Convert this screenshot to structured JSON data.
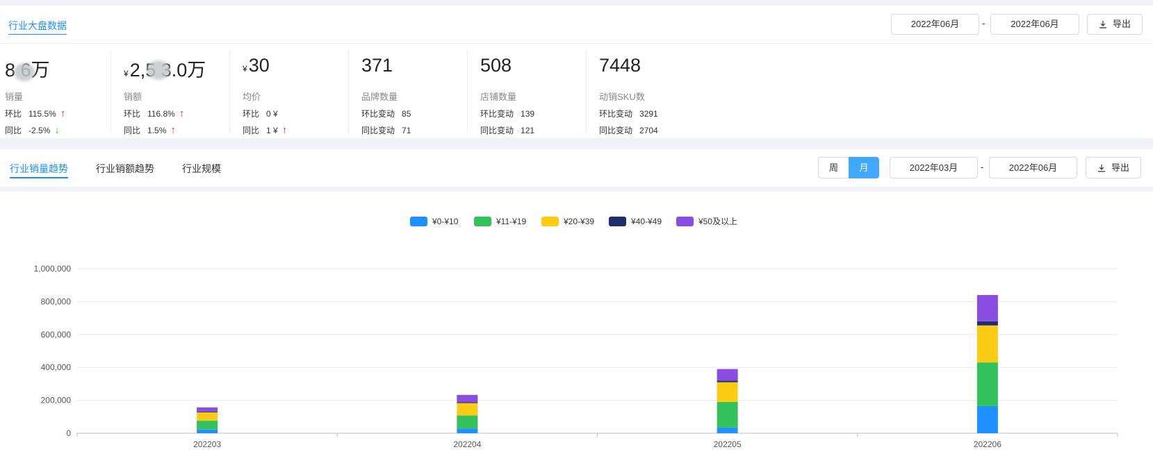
{
  "header": {
    "title": "行业大盘数据",
    "date_start": "2022年06月",
    "date_sep": "-",
    "date_end": "2022年06月",
    "export_label": "导出"
  },
  "stats": [
    {
      "value": "8  6万",
      "currency": "",
      "label": "销量",
      "line1_key": "环比",
      "line1_val": "115.5%",
      "line1_dir": "up",
      "line2_key": "同比",
      "line2_val": "-2.5%",
      "line2_dir": "down"
    },
    {
      "value": "2,5  3.0万",
      "currency": "¥",
      "label": "销额",
      "line1_key": "环比",
      "line1_val": "116.8%",
      "line1_dir": "up",
      "line2_key": "同比",
      "line2_val": "1.5%",
      "line2_dir": "up"
    },
    {
      "value": "30",
      "currency": "¥",
      "label": "均价",
      "line1_key": "环比",
      "line1_val": "0 ¥",
      "line1_dir": "",
      "line2_key": "同比",
      "line2_val": "1 ¥",
      "line2_dir": "up"
    },
    {
      "value": "371",
      "currency": "",
      "label": "品牌数量",
      "line1_key": "环比变动",
      "line1_val": "85",
      "line1_dir": "",
      "line2_key": "同比变动",
      "line2_val": "71",
      "line2_dir": ""
    },
    {
      "value": "508",
      "currency": "",
      "label": "店铺数量",
      "line1_key": "环比变动",
      "line1_val": "139",
      "line1_dir": "",
      "line2_key": "同比变动",
      "line2_val": "121",
      "line2_dir": ""
    },
    {
      "value": "7448",
      "currency": "",
      "label": "动销SKU数",
      "line1_key": "环比变动",
      "line1_val": "3291",
      "line1_dir": "",
      "line2_key": "同比变动",
      "line2_val": "2704",
      "line2_dir": ""
    }
  ],
  "tabs": {
    "items": [
      "行业销量趋势",
      "行业销额趋势",
      "行业规模"
    ],
    "active": 0,
    "period_week": "周",
    "period_month": "月",
    "period_active": "月",
    "date_start": "2022年03月",
    "date_sep": "-",
    "date_end": "2022年06月",
    "export_label": "导出"
  },
  "colors": {
    "accent": "#1890ff",
    "up": "#f5222d",
    "down": "#52c41a"
  },
  "chart_data": {
    "type": "bar",
    "stacked": true,
    "categories": [
      "202203",
      "202204",
      "202205",
      "202206"
    ],
    "series": [
      {
        "name": "¥0-¥10",
        "color": "#1e90ff",
        "values": [
          22000,
          28000,
          35000,
          165000
        ]
      },
      {
        "name": "¥11-¥19",
        "color": "#34c25c",
        "values": [
          55000,
          80000,
          155000,
          265000
        ]
      },
      {
        "name": "¥20-¥39",
        "color": "#fccb16",
        "values": [
          50000,
          75000,
          120000,
          225000
        ]
      },
      {
        "name": "¥40-¥49",
        "color": "#1f2f6e",
        "values": [
          5000,
          5000,
          10000,
          25000
        ]
      },
      {
        "name": "¥50及以上",
        "color": "#8a4de2",
        "values": [
          25000,
          45000,
          70000,
          160000
        ]
      }
    ],
    "ylim": [
      0,
      1000000
    ],
    "yticks": [
      0,
      200000,
      400000,
      600000,
      800000,
      1000000
    ],
    "ytick_labels": [
      "0",
      "200,000",
      "400,000",
      "600,000",
      "800,000",
      "1,000,000"
    ],
    "grid": true,
    "legend_position": "top-center",
    "title": "",
    "xlabel": "",
    "ylabel": ""
  }
}
